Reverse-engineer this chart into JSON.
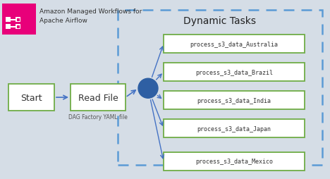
{
  "background_color": "#d5dde6",
  "dynamic_tasks_label": "Dynamic Tasks",
  "dynamic_tasks_box_color": "#5b9bd5",
  "box_edge_color": "#70ad47",
  "box_face_color": "#ffffff",
  "arrow_color": "#4472c4",
  "node_color": "#2e5fa3",
  "logo_bg": "#e8007a",
  "title_text": "Amazon Managed Workflows for\nApache Airflow",
  "title_fontsize": 6.5,
  "start_label": "Start",
  "read_file_label": "Read File",
  "read_file_sublabel": "DAG Factory YAML file",
  "dynamic_tasks_label_fontsize": 10,
  "task_labels": [
    "process_s3_data_Australia",
    "process_s3_data_Brazil",
    "process_s3_data_India",
    "process_s3_data_Japan",
    "process_s3_data_Mexico"
  ]
}
